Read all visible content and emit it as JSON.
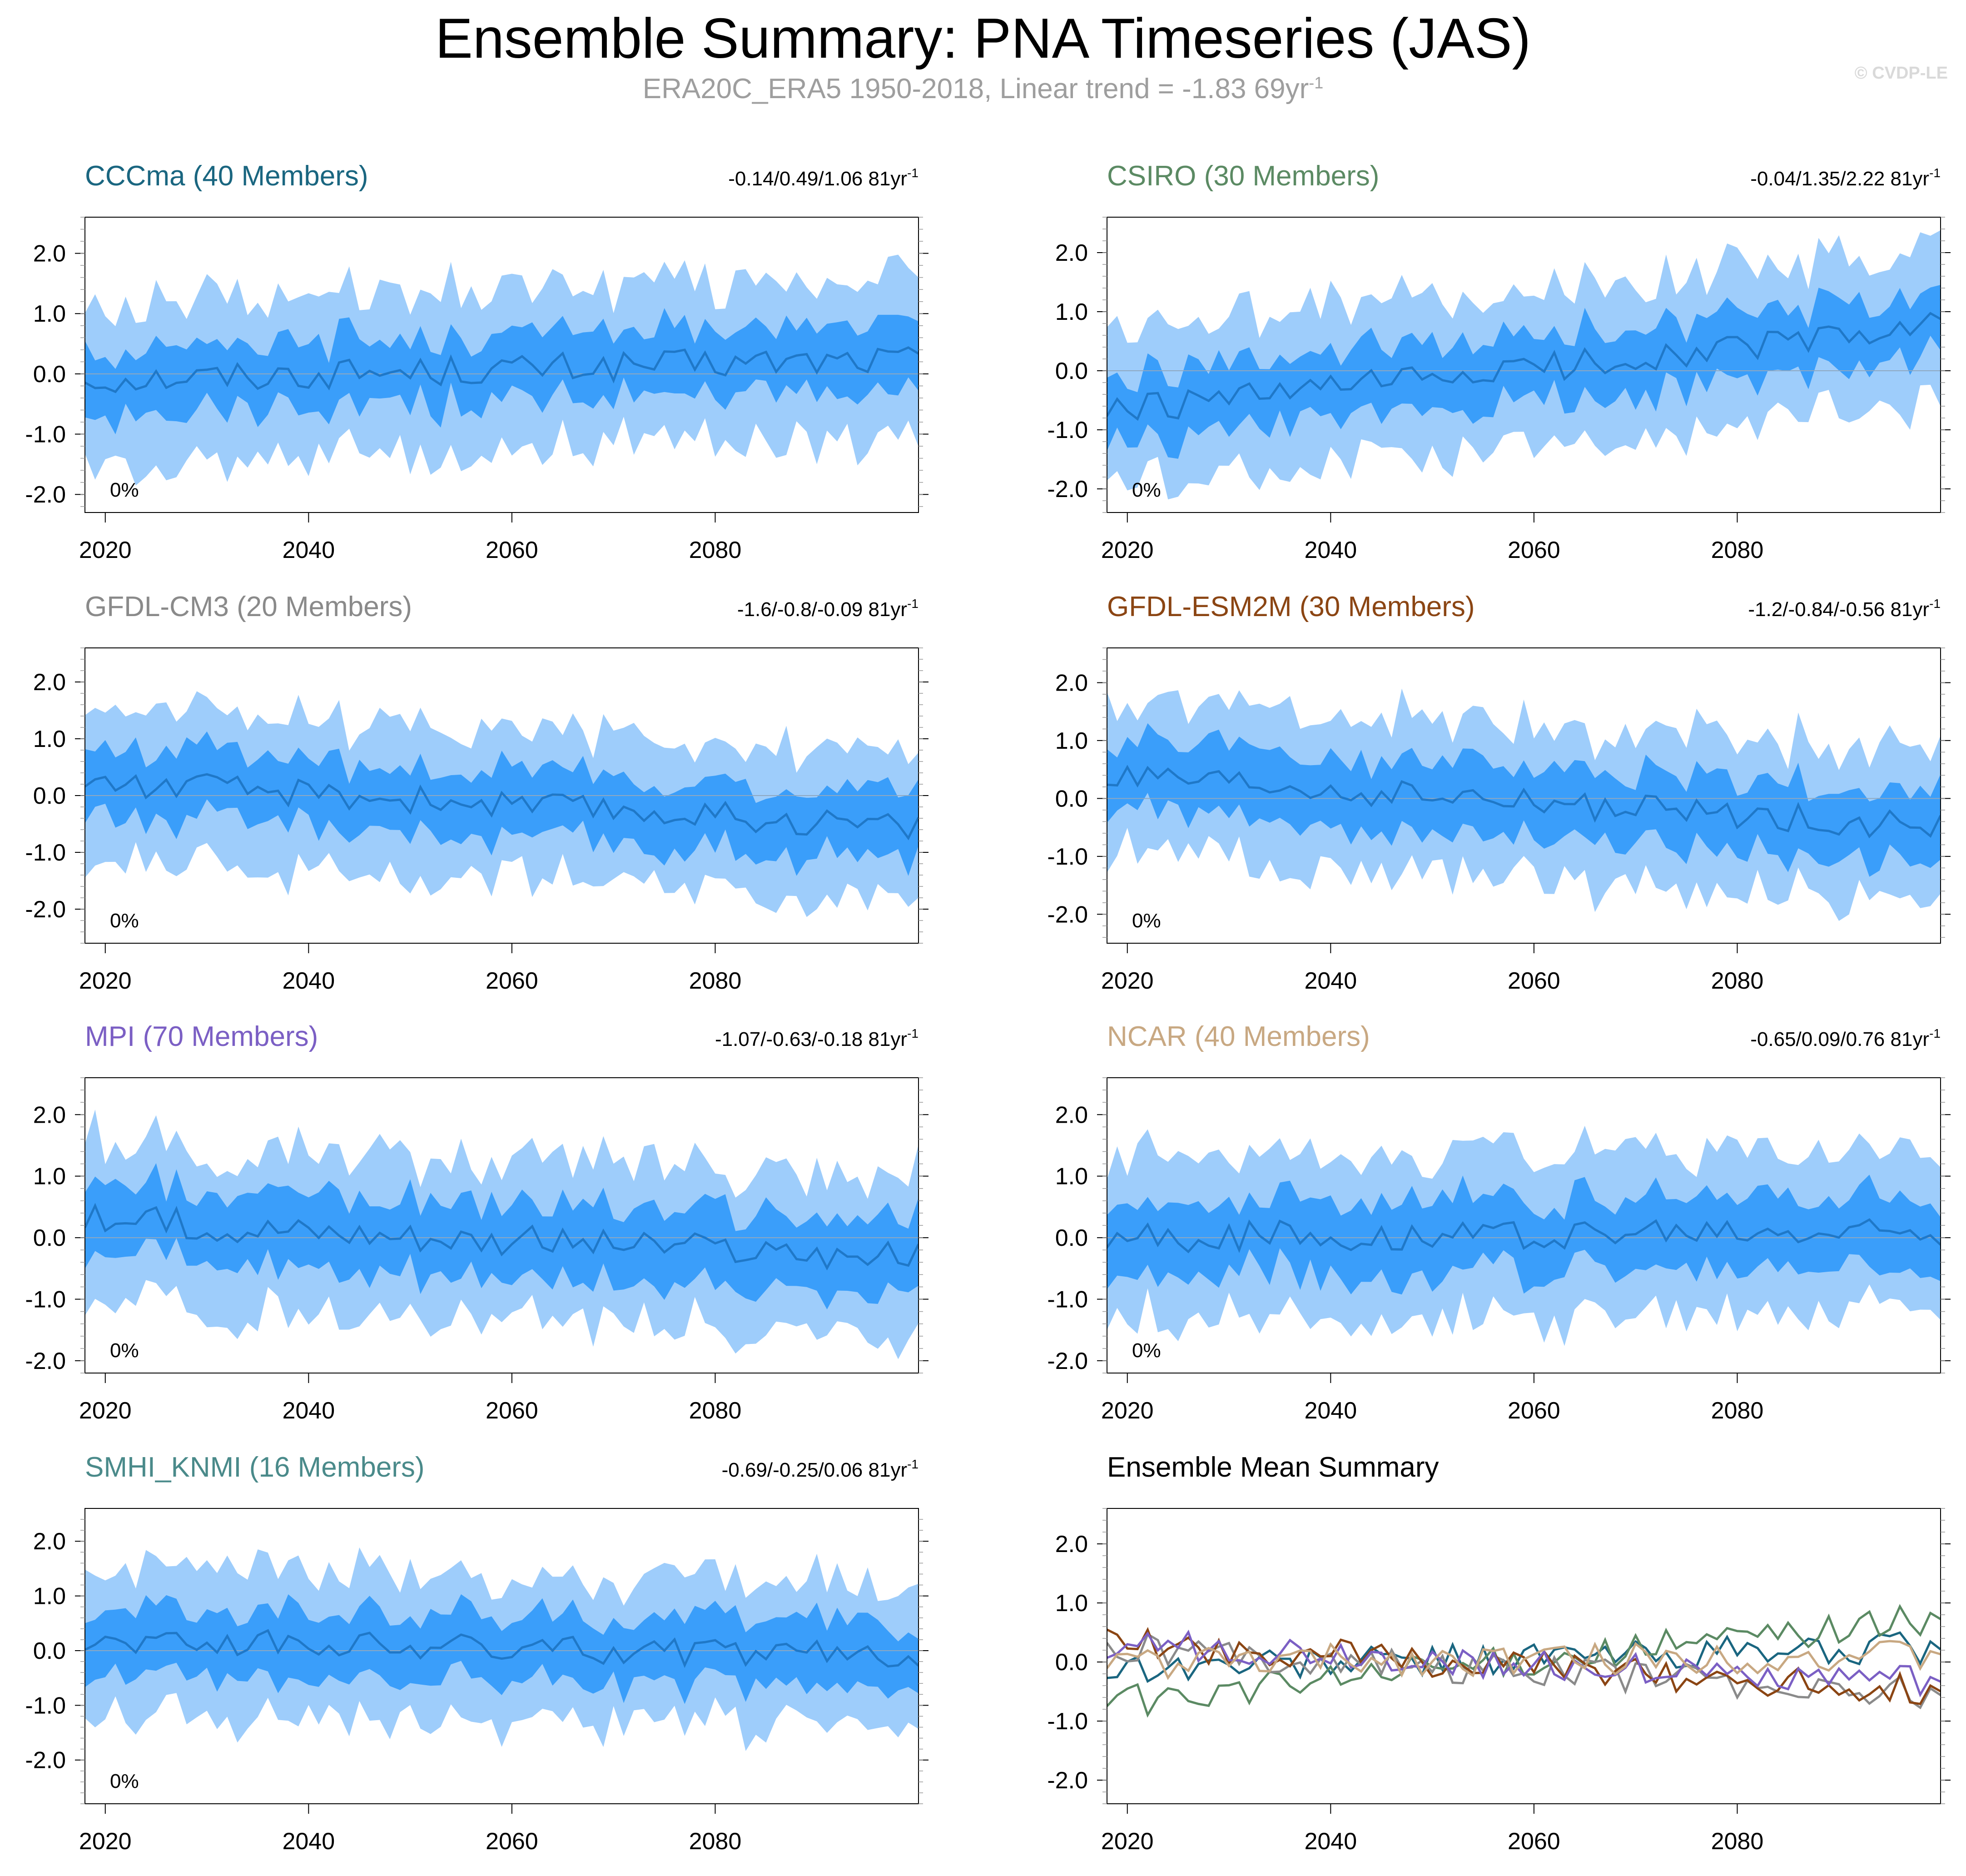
{
  "header": {
    "title": "Ensemble Summary: PNA Timeseries (JAS)",
    "subtitle_text": "ERA20C_ERA5 1950-2018, Linear trend = -1.83 69yr",
    "subtitle_exp": "-1",
    "credit": "© CVDP-LE"
  },
  "chart_data": [
    {
      "id": "cccma",
      "type": "area",
      "title": "CCCma (40 Members)",
      "title_color": "#1a6680",
      "range_label": "-0.14/0.49/1.06 81yr",
      "range_exp": "-1",
      "percent_label": "0%",
      "x_start": 2018,
      "x_end": 2100,
      "xticks": [
        2020,
        2040,
        2060,
        2080
      ],
      "yticks": [
        "2.0",
        "1.0",
        "0.0",
        "-1.0",
        "-2.0"
      ],
      "ylim": [
        -2.3,
        2.6
      ],
      "trend_start": -0.1,
      "trend_end": 0.25,
      "iqr": 0.55,
      "outer": 1.2,
      "outer_color": "#9ecdfb",
      "inner_color": "#3a9efa",
      "mean_color": "#1f78c8"
    },
    {
      "id": "csiro",
      "type": "area",
      "title": "CSIRO (30 Members)",
      "title_color": "#5b8a63",
      "range_label": "-0.04/1.35/2.22 81yr",
      "range_exp": "-1",
      "percent_label": "0%",
      "x_start": 2018,
      "x_end": 2100,
      "xticks": [
        2020,
        2040,
        2060,
        2080
      ],
      "yticks": [
        "2.0",
        "1.0",
        "0.0",
        "-1.0",
        "-2.0"
      ],
      "ylim": [
        -2.4,
        2.6
      ],
      "trend_start": -0.7,
      "trend_end": 0.75,
      "iqr": 0.55,
      "outer": 1.2,
      "outer_color": "#9ecdfb",
      "inner_color": "#3a9efa",
      "mean_color": "#1f78c8"
    },
    {
      "id": "gfdlcm3",
      "type": "area",
      "title": "GFDL-CM3 (20 Members)",
      "title_color": "#8a8a8a",
      "range_label": "-1.6/-0.8/-0.09 81yr",
      "range_exp": "-1",
      "percent_label": "0%",
      "x_start": 2018,
      "x_end": 2100,
      "xticks": [
        2020,
        2040,
        2060,
        2080
      ],
      "yticks": [
        "2.0",
        "1.0",
        "0.0",
        "-1.0",
        "-2.0"
      ],
      "ylim": [
        -2.6,
        2.6
      ],
      "trend_start": 0.25,
      "trend_end": -0.55,
      "iqr": 0.6,
      "outer": 1.2,
      "outer_color": "#9ecdfb",
      "inner_color": "#3a9efa",
      "mean_color": "#1f78c8"
    },
    {
      "id": "gfdlesm2m",
      "type": "area",
      "title": "GFDL-ESM2M (30 Members)",
      "title_color": "#8b4513",
      "range_label": "-1.2/-0.84/-0.56 81yr",
      "range_exp": "-1",
      "percent_label": "0%",
      "x_start": 2018,
      "x_end": 2100,
      "xticks": [
        2020,
        2040,
        2060,
        2080
      ],
      "yticks": [
        "2.0",
        "1.0",
        "0.0",
        "-1.0",
        "-2.0"
      ],
      "ylim": [
        -2.5,
        2.6
      ],
      "trend_start": 0.35,
      "trend_end": -0.5,
      "iqr": 0.6,
      "outer": 1.2,
      "outer_color": "#9ecdfb",
      "inner_color": "#3a9efa",
      "mean_color": "#1f78c8"
    },
    {
      "id": "mpi",
      "type": "area",
      "title": "MPI (70 Members)",
      "title_color": "#7b5fc4",
      "range_label": "-1.07/-0.63/-0.18 81yr",
      "range_exp": "-1",
      "percent_label": "0%",
      "x_start": 2018,
      "x_end": 2100,
      "xticks": [
        2020,
        2040,
        2060,
        2080
      ],
      "yticks": [
        "2.0",
        "1.0",
        "0.0",
        "-1.0",
        "-2.0"
      ],
      "ylim": [
        -2.2,
        2.6
      ],
      "trend_start": 0.3,
      "trend_end": -0.35,
      "iqr": 0.6,
      "outer": 1.2,
      "outer_color": "#9ecdfb",
      "inner_color": "#3a9efa",
      "mean_color": "#1f78c8"
    },
    {
      "id": "ncar",
      "type": "area",
      "title": "NCAR (40 Members)",
      "title_color": "#c8a882",
      "range_label": "-0.65/0.09/0.76 81yr",
      "range_exp": "-1",
      "percent_label": "0%",
      "x_start": 2018,
      "x_end": 2100,
      "xticks": [
        2020,
        2040,
        2060,
        2080
      ],
      "yticks": [
        "2.0",
        "1.0",
        "0.0",
        "-1.0",
        "-2.0"
      ],
      "ylim": [
        -2.2,
        2.6
      ],
      "trend_start": 0.0,
      "trend_end": 0.1,
      "iqr": 0.6,
      "outer": 1.2,
      "outer_color": "#9ecdfb",
      "inner_color": "#3a9efa",
      "mean_color": "#1f78c8"
    },
    {
      "id": "smhi",
      "type": "area",
      "title": "SMHI_KNMI (16 Members)",
      "title_color": "#4a8a8a",
      "range_label": "-0.69/-0.25/0.06 81yr",
      "range_exp": "-1",
      "percent_label": "0%",
      "x_start": 2018,
      "x_end": 2100,
      "xticks": [
        2020,
        2040,
        2060,
        2080
      ],
      "yticks": [
        "2.0",
        "1.0",
        "0.0",
        "-1.0",
        "-2.0"
      ],
      "ylim": [
        -2.8,
        2.6
      ],
      "trend_start": 0.2,
      "trend_end": -0.1,
      "iqr": 0.6,
      "outer": 1.2,
      "outer_color": "#9ecdfb",
      "inner_color": "#3a9efa",
      "mean_color": "#1f78c8"
    },
    {
      "id": "summary",
      "type": "line",
      "title": "Ensemble Mean Summary",
      "title_color": "#000000",
      "range_label": "",
      "range_exp": "",
      "percent_label": "",
      "x_start": 2018,
      "x_end": 2100,
      "xticks": [
        2020,
        2040,
        2060,
        2080
      ],
      "yticks": [
        "2.0",
        "1.0",
        "0.0",
        "-1.0",
        "-2.0"
      ],
      "ylim": [
        -2.4,
        2.6
      ],
      "series": [
        {
          "color": "#1a6680",
          "trend_start": -0.1,
          "trend_end": 0.25
        },
        {
          "color": "#5b8a63",
          "trend_start": -0.7,
          "trend_end": 0.75
        },
        {
          "color": "#8a8a8a",
          "trend_start": 0.25,
          "trend_end": -0.55
        },
        {
          "color": "#8b4513",
          "trend_start": 0.35,
          "trend_end": -0.5
        },
        {
          "color": "#7b5fc4",
          "trend_start": 0.3,
          "trend_end": -0.35
        },
        {
          "color": "#c8a882",
          "trend_start": 0.0,
          "trend_end": 0.1
        }
      ]
    }
  ]
}
